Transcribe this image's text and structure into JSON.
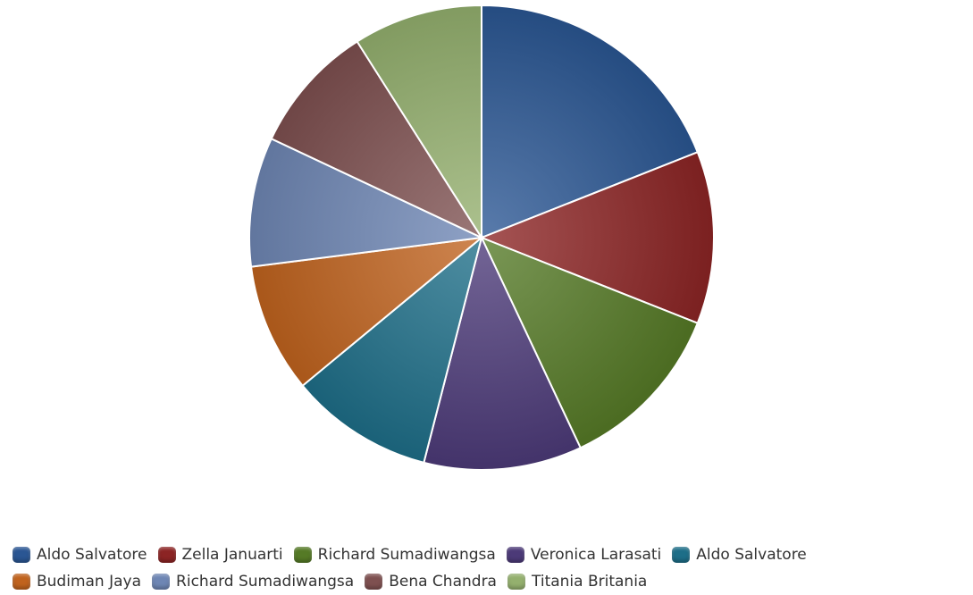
{
  "chart_data": {
    "type": "pie",
    "title": "",
    "slices": [
      {
        "label": "Aldo Salvatore",
        "value": 19,
        "color": "#2a5693"
      },
      {
        "label": "Zella Januarti",
        "value": 12,
        "color": "#8c2424"
      },
      {
        "label": "Richard Sumadiwangsa",
        "value": 12,
        "color": "#557a26"
      },
      {
        "label": "Veronica Larasati",
        "value": 11,
        "color": "#4c3a78"
      },
      {
        "label": "Aldo Salvatore",
        "value": 10,
        "color": "#1d6e88"
      },
      {
        "label": "Budiman Jaya",
        "value": 9,
        "color": "#c0631e"
      },
      {
        "label": "Richard Sumadiwangsa",
        "value": 9,
        "color": "#6e86b4"
      },
      {
        "label": "Bena Chandra",
        "value": 9,
        "color": "#7e5050"
      },
      {
        "label": "Titania Britania",
        "value": 9,
        "color": "#94b06e"
      }
    ],
    "legend_position": "bottom"
  }
}
